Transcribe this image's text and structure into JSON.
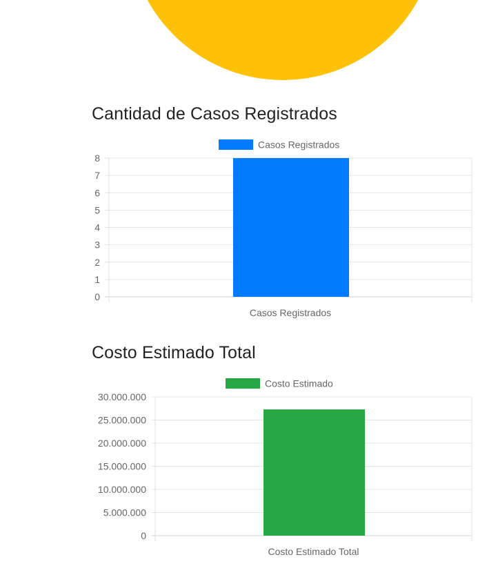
{
  "pie": {
    "color": "#FFC107"
  },
  "sections": [
    {
      "title": "Cantidad de Casos Registrados"
    },
    {
      "title": "Costo Estimado Total"
    }
  ],
  "chart_data": [
    {
      "type": "bar",
      "categories": [
        "Casos Registrados"
      ],
      "series": [
        {
          "name": "Casos Registrados",
          "values": [
            8
          ],
          "color": "#007BFF"
        }
      ],
      "yticks": [
        "0",
        "1",
        "2",
        "3",
        "4",
        "5",
        "6",
        "7",
        "8"
      ],
      "ylim": [
        0,
        8
      ],
      "grid": true,
      "legend": "top-center"
    },
    {
      "type": "bar",
      "categories": [
        "Costo Estimado Total"
      ],
      "series": [
        {
          "name": "Costo Estimado",
          "values": [
            27300000
          ],
          "color": "#28A745"
        }
      ],
      "yticks": [
        "0",
        "5.000.000",
        "10.000.000",
        "15.000.000",
        "20.000.000",
        "25.000.000",
        "30.000.000"
      ],
      "ylim": [
        0,
        30000000
      ],
      "grid": true,
      "legend": "top-center"
    }
  ]
}
